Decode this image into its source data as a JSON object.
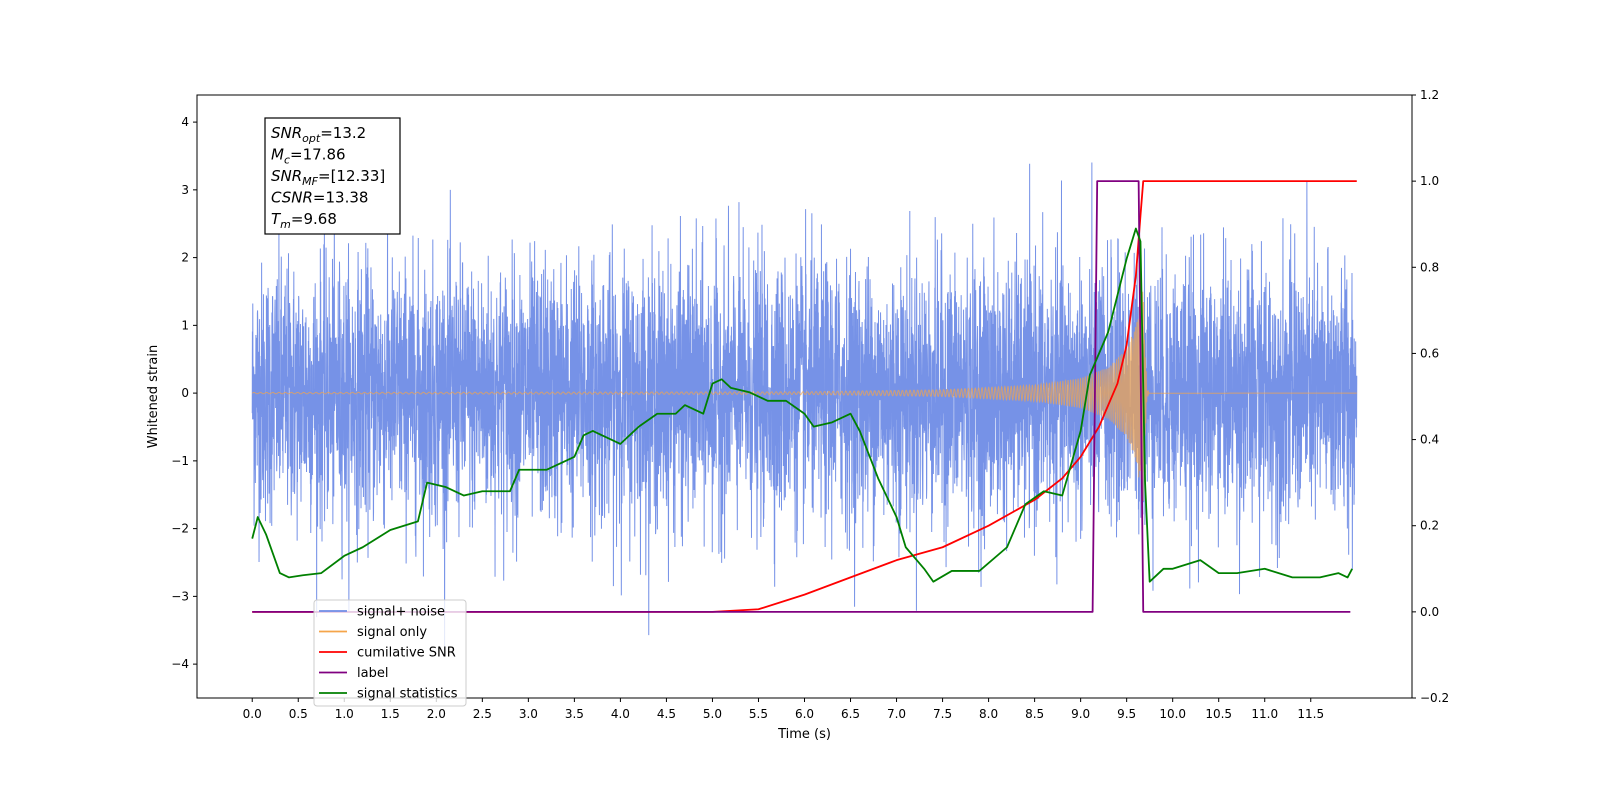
{
  "chart_data": {
    "type": "line",
    "xlabel": "Time (s)",
    "ylabel": "Whitened strain",
    "xlim": [
      -0.6,
      12.6
    ],
    "ylim": [
      -4.5,
      4.4
    ],
    "y2lim": [
      -0.2,
      1.2
    ],
    "x_ticks": [
      0.0,
      0.5,
      1.0,
      1.5,
      2.0,
      2.5,
      3.0,
      3.5,
      4.0,
      4.5,
      5.0,
      5.5,
      6.0,
      6.5,
      7.0,
      7.5,
      8.0,
      8.5,
      9.0,
      9.5,
      10.0,
      10.5,
      11.0,
      11.5
    ],
    "x_tick_labels": [
      "0.0",
      "0.5",
      "1.0",
      "1.5",
      "2.0",
      "2.5",
      "3.0",
      "3.5",
      "4.0",
      "4.5",
      "5.0",
      "5.5",
      "6.0",
      "6.5",
      "7.0",
      "7.5",
      "8.0",
      "8.5",
      "9.0",
      "9.5",
      "10.0",
      "10.5",
      "11.0",
      "11.5"
    ],
    "y_ticks": [
      -4,
      -3,
      -2,
      -1,
      0,
      1,
      2,
      3,
      4
    ],
    "y_tick_labels": [
      "−4",
      "−3",
      "−2",
      "−1",
      "0",
      "1",
      "2",
      "3",
      "4"
    ],
    "y2_ticks": [
      -0.2,
      0.0,
      0.2,
      0.4,
      0.6,
      0.8,
      1.0,
      1.2
    ],
    "y2_tick_labels": [
      "−0.2",
      "0.0",
      "0.2",
      "0.4",
      "0.6",
      "0.8",
      "1.0",
      "1.2"
    ],
    "colors": {
      "signal_noise": "#6f8ce6",
      "signal_only": "#f5a54a",
      "cumulative_snr": "#ff0000",
      "label": "#800080",
      "signal_statistics": "#008000"
    },
    "noise_envelope": {
      "x": [
        0.0,
        12.0
      ],
      "typical_range": [
        -2.3,
        2.4
      ],
      "spike_range": [
        -4.1,
        4.0
      ]
    },
    "signal_only": {
      "merger_time": 9.68,
      "amplitude": [
        [
          0.0,
          0.01
        ],
        [
          6.0,
          0.02
        ],
        [
          7.5,
          0.05
        ],
        [
          8.5,
          0.12
        ],
        [
          9.0,
          0.22
        ],
        [
          9.3,
          0.38
        ],
        [
          9.5,
          0.65
        ],
        [
          9.6,
          1.0
        ],
        [
          9.66,
          1.5
        ],
        [
          9.68,
          1.6
        ],
        [
          9.72,
          0.05
        ],
        [
          12.0,
          0.0
        ]
      ]
    },
    "series": [
      {
        "name": "cumilative SNR",
        "axis": "right",
        "x": [
          0.0,
          5.0,
          5.5,
          6.0,
          6.5,
          7.0,
          7.5,
          8.0,
          8.5,
          8.8,
          9.0,
          9.2,
          9.4,
          9.5,
          9.6,
          9.65,
          9.68,
          9.7,
          12.0
        ],
        "y": [
          0.0,
          0.0,
          0.006,
          0.04,
          0.08,
          0.12,
          0.15,
          0.2,
          0.26,
          0.31,
          0.36,
          0.43,
          0.53,
          0.62,
          0.78,
          0.92,
          1.0,
          1.0,
          1.0
        ]
      },
      {
        "name": "label",
        "axis": "right",
        "x": [
          0.0,
          9.13,
          9.18,
          9.63,
          9.68,
          11.93
        ],
        "y": [
          0.0,
          0.0,
          1.0,
          1.0,
          0.0,
          0.0
        ]
      },
      {
        "name": "signal statistics",
        "axis": "right",
        "x": [
          0.0,
          0.06,
          0.15,
          0.3,
          0.4,
          0.55,
          0.75,
          1.0,
          1.2,
          1.5,
          1.8,
          1.9,
          2.1,
          2.3,
          2.5,
          2.8,
          2.9,
          3.2,
          3.5,
          3.6,
          3.7,
          3.8,
          4.0,
          4.2,
          4.4,
          4.6,
          4.7,
          4.9,
          5.0,
          5.1,
          5.2,
          5.4,
          5.6,
          5.8,
          6.0,
          6.1,
          6.3,
          6.5,
          6.6,
          6.8,
          7.0,
          7.1,
          7.3,
          7.4,
          7.6,
          7.9,
          8.2,
          8.4,
          8.6,
          8.8,
          9.0,
          9.1,
          9.3,
          9.5,
          9.6,
          9.65,
          9.7,
          9.75,
          9.9,
          10.0,
          10.3,
          10.5,
          10.7,
          11.0,
          11.3,
          11.6,
          11.8,
          11.9,
          11.95
        ],
        "y": [
          0.17,
          0.22,
          0.18,
          0.09,
          0.08,
          0.085,
          0.09,
          0.13,
          0.15,
          0.19,
          0.21,
          0.3,
          0.29,
          0.27,
          0.28,
          0.28,
          0.33,
          0.33,
          0.36,
          0.41,
          0.42,
          0.41,
          0.39,
          0.43,
          0.46,
          0.46,
          0.48,
          0.46,
          0.53,
          0.54,
          0.52,
          0.51,
          0.49,
          0.49,
          0.46,
          0.43,
          0.44,
          0.46,
          0.42,
          0.31,
          0.22,
          0.15,
          0.1,
          0.07,
          0.095,
          0.095,
          0.15,
          0.25,
          0.28,
          0.27,
          0.42,
          0.55,
          0.65,
          0.82,
          0.89,
          0.86,
          0.3,
          0.07,
          0.1,
          0.1,
          0.12,
          0.09,
          0.09,
          0.1,
          0.08,
          0.08,
          0.09,
          0.08,
          0.1
        ]
      }
    ],
    "info_box": [
      {
        "label": "SNR",
        "sub": "opt",
        "value": "=13.2"
      },
      {
        "label": "M",
        "sub": "c",
        "value": "=17.86"
      },
      {
        "label": "SNR",
        "sub": "MF",
        "value": "=[12.33]"
      },
      {
        "label": "CSNR",
        "sub": "",
        "value": "=13.38"
      },
      {
        "label": "T",
        "sub": "m",
        "value": "=9.68"
      }
    ],
    "legend": [
      {
        "label": "signal+ noise",
        "color": "#6f8ce6"
      },
      {
        "label": "signal only",
        "color": "#f5a54a"
      },
      {
        "label": "cumilative SNR",
        "color": "#ff0000"
      },
      {
        "label": "label",
        "color": "#800080"
      },
      {
        "label": "signal statistics",
        "color": "#008000"
      }
    ],
    "legend_position": "lower-left",
    "grid": false
  }
}
